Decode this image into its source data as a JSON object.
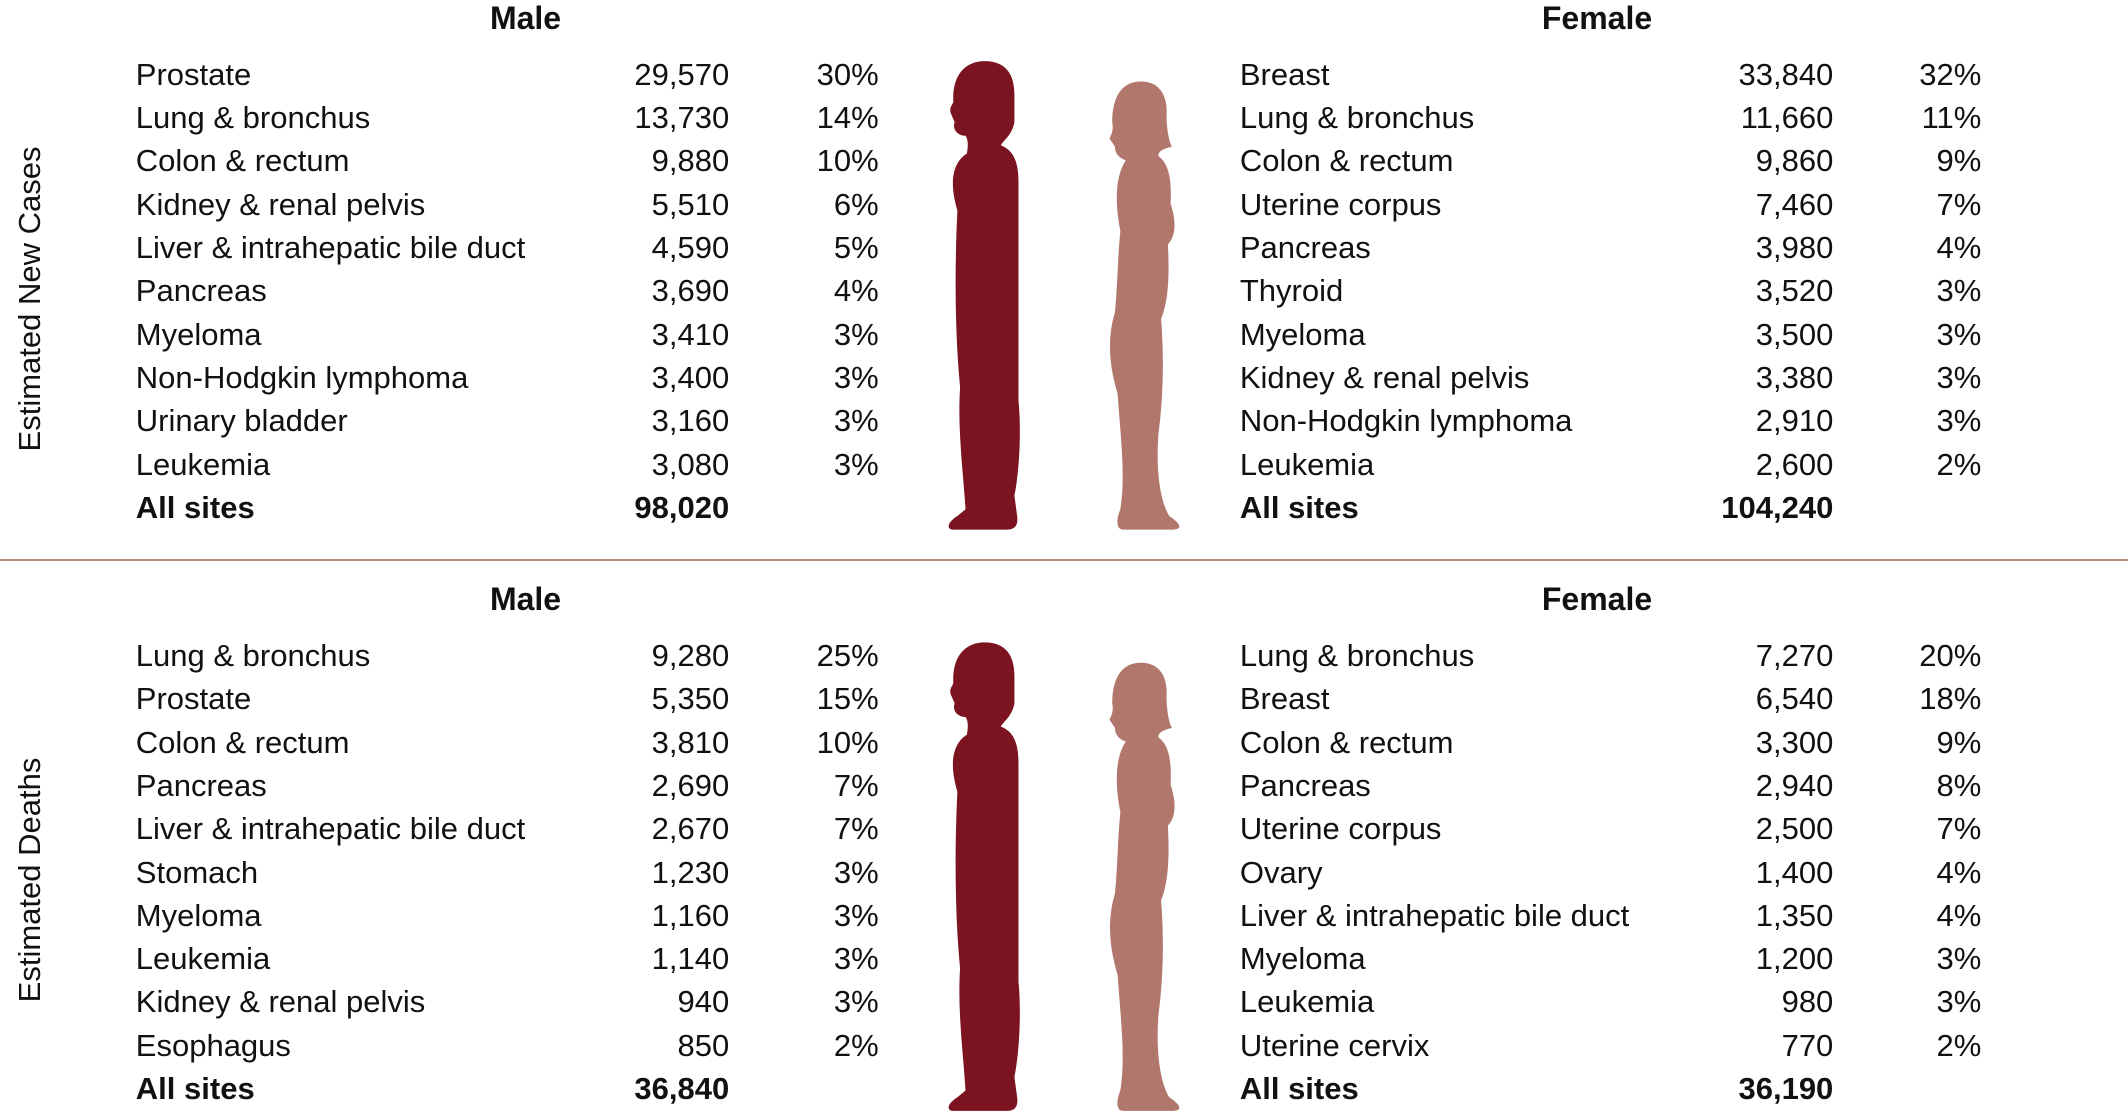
{
  "sections": [
    {
      "label": "Estimated New Cases",
      "male": {
        "title": "Male",
        "rows": [
          [
            "Prostate",
            "29,570",
            "30%"
          ],
          [
            "Lung & bronchus",
            "13,730",
            "14%"
          ],
          [
            "Colon & rectum",
            "9,880",
            "10%"
          ],
          [
            "Kidney & renal pelvis",
            "5,510",
            "6%"
          ],
          [
            "Liver & intrahepatic bile duct",
            "4,590",
            "5%"
          ],
          [
            "Pancreas",
            "3,690",
            "4%"
          ],
          [
            "Myeloma",
            "3,410",
            "3%"
          ],
          [
            "Non-Hodgkin lymphoma",
            "3,400",
            "3%"
          ],
          [
            "Urinary bladder",
            "3,160",
            "3%"
          ],
          [
            "Leukemia",
            "3,080",
            "3%"
          ]
        ],
        "total": {
          "label": "All sites",
          "value": "98,020"
        }
      },
      "female": {
        "title": "Female",
        "rows": [
          [
            "Breast",
            "33,840",
            "32%"
          ],
          [
            "Lung & bronchus",
            "11,660",
            "11%"
          ],
          [
            "Colon & rectum",
            "9,860",
            "9%"
          ],
          [
            "Uterine corpus",
            "7,460",
            "7%"
          ],
          [
            "Pancreas",
            "3,980",
            "4%"
          ],
          [
            "Thyroid",
            "3,520",
            "3%"
          ],
          [
            "Myeloma",
            "3,500",
            "3%"
          ],
          [
            "Kidney & renal pelvis",
            "3,380",
            "3%"
          ],
          [
            "Non-Hodgkin lymphoma",
            "2,910",
            "3%"
          ],
          [
            "Leukemia",
            "2,600",
            "2%"
          ]
        ],
        "total": {
          "label": "All sites",
          "value": "104,240"
        }
      }
    },
    {
      "label": "Estimated Deaths",
      "male": {
        "title": "Male",
        "rows": [
          [
            "Lung & bronchus",
            "9,280",
            "25%"
          ],
          [
            "Prostate",
            "5,350",
            "15%"
          ],
          [
            "Colon & rectum",
            "3,810",
            "10%"
          ],
          [
            "Pancreas",
            "2,690",
            "7%"
          ],
          [
            "Liver & intrahepatic bile duct",
            "2,670",
            "7%"
          ],
          [
            "Stomach",
            "1,230",
            "3%"
          ],
          [
            "Myeloma",
            "1,160",
            "3%"
          ],
          [
            "Leukemia",
            "1,140",
            "3%"
          ],
          [
            "Kidney & renal pelvis",
            "940",
            "3%"
          ],
          [
            "Esophagus",
            "850",
            "2%"
          ]
        ],
        "total": {
          "label": "All sites",
          "value": "36,840"
        }
      },
      "female": {
        "title": "Female",
        "rows": [
          [
            "Lung & bronchus",
            "7,270",
            "20%"
          ],
          [
            "Breast",
            "6,540",
            "18%"
          ],
          [
            "Colon & rectum",
            "3,300",
            "9%"
          ],
          [
            "Pancreas",
            "2,940",
            "8%"
          ],
          [
            "Uterine corpus",
            "2,500",
            "7%"
          ],
          [
            "Ovary",
            "1,400",
            "4%"
          ],
          [
            "Liver & intrahepatic bile duct",
            "1,350",
            "4%"
          ],
          [
            "Myeloma",
            "1,200",
            "3%"
          ],
          [
            "Leukemia",
            "980",
            "3%"
          ],
          [
            "Uterine cervix",
            "770",
            "2%"
          ]
        ],
        "total": {
          "label": "All sites",
          "value": "36,190"
        }
      }
    }
  ]
}
